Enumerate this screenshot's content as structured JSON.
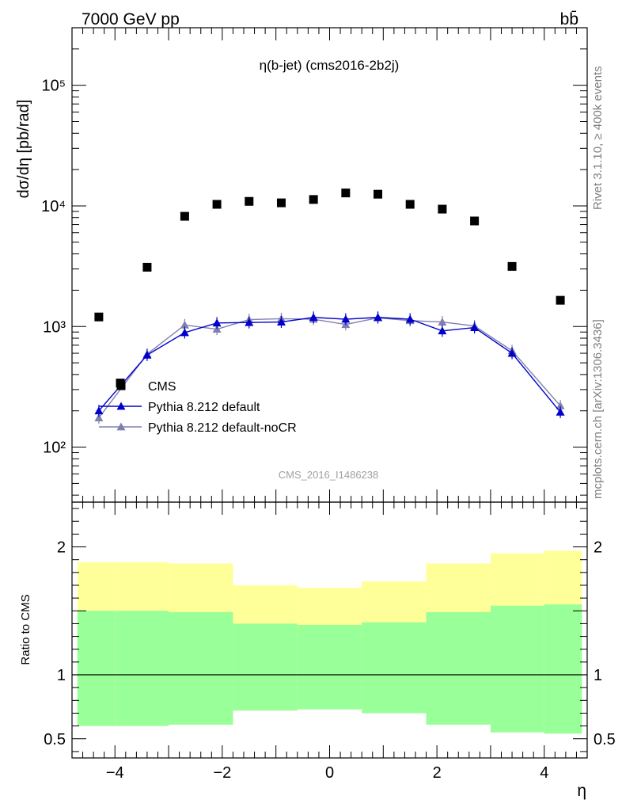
{
  "header": {
    "left": "7000 GeV pp",
    "right": "bb̄"
  },
  "side_labels": {
    "rivet": "Rivet 3.1.10, ≥ 400k events",
    "mcplots": "mcplots.cern.ch [arXiv:1306.3436]"
  },
  "chart_data": [
    {
      "type": "scatter",
      "title": "η(b-jet) (cms2016-2b2j)",
      "watermark": "CMS_2016_I1486238",
      "ylabel": "dσ/dη [pb/rad]",
      "xlabel": "",
      "yscale": "log",
      "xlim": [
        -4.8,
        4.8
      ],
      "ylim": [
        35,
        300000
      ],
      "y_ticks": [
        {
          "value": 100,
          "label": "10²"
        },
        {
          "value": 1000,
          "label": "10³"
        },
        {
          "value": 10000,
          "label": "10⁴"
        },
        {
          "value": 100000,
          "label": "10⁵"
        }
      ],
      "legend_position": "lower-left",
      "series": [
        {
          "name": "CMS",
          "color": "#000000",
          "marker": "square",
          "x": [
            -4.3,
            -3.9,
            -3.4,
            -2.7,
            -2.1,
            -1.5,
            -0.9,
            -0.3,
            0.3,
            0.9,
            1.5,
            2.1,
            2.7,
            3.4,
            4.3
          ],
          "y": [
            1200,
            340,
            3100,
            8200,
            10300,
            10900,
            10600,
            11300,
            12800,
            12500,
            10300,
            9400,
            7500,
            3150,
            1650
          ]
        },
        {
          "name": "Pythia 8.212 default",
          "color": "#0000cc",
          "marker": "triangle",
          "x": [
            -4.3,
            -3.4,
            -2.7,
            -2.1,
            -1.5,
            -0.9,
            -0.3,
            0.3,
            0.9,
            1.5,
            2.1,
            2.7,
            3.4,
            4.3
          ],
          "y": [
            200,
            580,
            890,
            1070,
            1080,
            1090,
            1190,
            1150,
            1190,
            1150,
            920,
            980,
            600,
            195
          ]
        },
        {
          "name": "Pythia 8.212 default-noCR",
          "color": "#8080b0",
          "marker": "triangle",
          "x": [
            -4.3,
            -3.4,
            -2.7,
            -2.1,
            -1.5,
            -0.9,
            -0.3,
            0.3,
            0.9,
            1.5,
            2.1,
            2.7,
            3.4,
            4.3
          ],
          "y": [
            175,
            590,
            1030,
            950,
            1140,
            1160,
            1150,
            1040,
            1180,
            1120,
            1090,
            1010,
            630,
            220
          ]
        }
      ]
    },
    {
      "type": "area",
      "title": "",
      "ylabel": "Ratio to CMS",
      "xlabel": "η",
      "xlim": [
        -4.8,
        4.8
      ],
      "ylim": [
        0.35,
        2.35
      ],
      "x_ticks": [
        -4,
        -2,
        0,
        2,
        4
      ],
      "y_ticks": [
        0.5,
        1,
        2
      ],
      "reference_line": 1,
      "bins": [
        {
          "lo": -4.7,
          "hi": -4.0,
          "band2_lo": 0.6,
          "band2_hi": 1.88,
          "band1_lo": 0.6,
          "band1_hi": 1.5
        },
        {
          "lo": -4.0,
          "hi": -3.0,
          "band2_lo": 0.6,
          "band2_hi": 1.88,
          "band1_lo": 0.6,
          "band1_hi": 1.5
        },
        {
          "lo": -3.0,
          "hi": -1.8,
          "band2_lo": 0.61,
          "band2_hi": 1.87,
          "band1_lo": 0.61,
          "band1_hi": 1.49
        },
        {
          "lo": -1.8,
          "hi": -0.6,
          "band2_lo": 0.72,
          "band2_hi": 1.7,
          "band1_lo": 0.72,
          "band1_hi": 1.4
        },
        {
          "lo": -0.6,
          "hi": 0.6,
          "band2_lo": 0.73,
          "band2_hi": 1.68,
          "band1_lo": 0.73,
          "band1_hi": 1.39
        },
        {
          "lo": 0.6,
          "hi": 1.8,
          "band2_lo": 0.7,
          "band2_hi": 1.73,
          "band1_lo": 0.7,
          "band1_hi": 1.41
        },
        {
          "lo": 1.8,
          "hi": 3.0,
          "band2_lo": 0.61,
          "band2_hi": 1.87,
          "band1_lo": 0.61,
          "band1_hi": 1.49
        },
        {
          "lo": 3.0,
          "hi": 4.0,
          "band2_lo": 0.55,
          "band2_hi": 1.95,
          "band1_lo": 0.55,
          "band1_hi": 1.54
        },
        {
          "lo": 4.0,
          "hi": 4.7,
          "band2_lo": 0.54,
          "band2_hi": 1.97,
          "band1_lo": 0.54,
          "band1_hi": 1.55
        }
      ],
      "band_colors": {
        "outer": "#ffff99",
        "inner": "#99ff99"
      }
    }
  ]
}
